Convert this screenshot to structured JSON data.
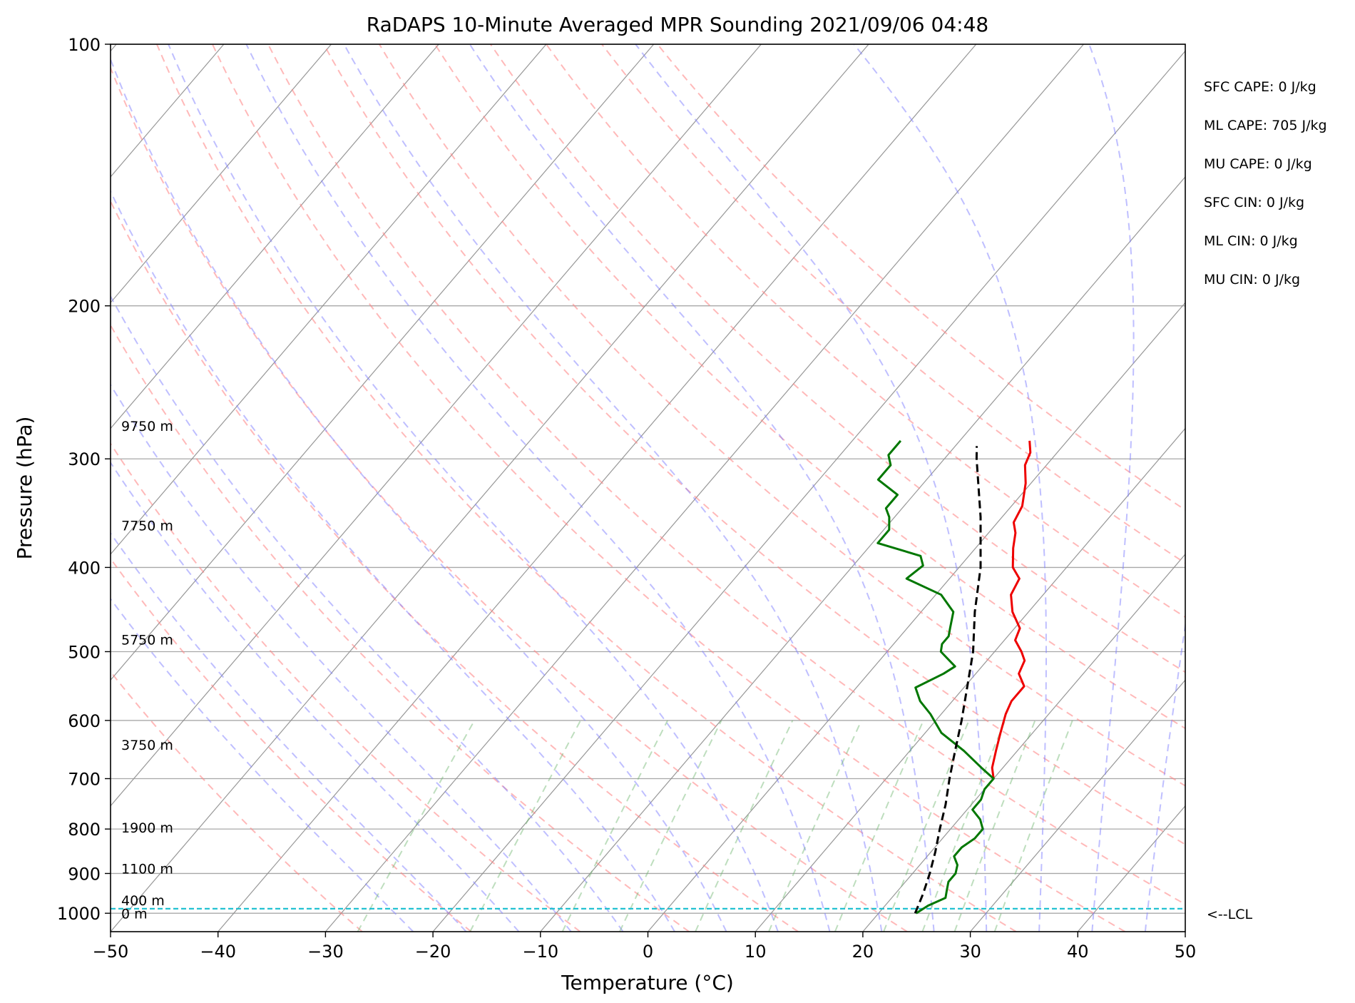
{
  "chart_data": {
    "type": "line",
    "title": "RaDAPS 10-Minute Averaged MPR Sounding 2021/09/06 04:48",
    "xlabel": "Temperature (°C)",
    "ylabel": "Pressure (hPa)",
    "xlim": [
      -50,
      50
    ],
    "ylim": [
      1050,
      100
    ],
    "y_scale": "log",
    "x_ticks": [
      -50,
      -40,
      -30,
      -20,
      -10,
      0,
      10,
      20,
      30,
      40,
      50
    ],
    "x_tick_labels": [
      "−50",
      "−40",
      "−30",
      "−20",
      "−10",
      "0",
      "10",
      "20",
      "30",
      "40",
      "50"
    ],
    "y_ticks": [
      100,
      200,
      300,
      400,
      500,
      600,
      700,
      800,
      900,
      1000
    ],
    "y_tick_labels": [
      "100",
      "200",
      "300",
      "400",
      "500",
      "600",
      "700",
      "800",
      "900",
      "1000"
    ],
    "grid": true,
    "skew_factor": 30,
    "colors": {
      "temperature": "#ee0000",
      "dewpoint": "#007700",
      "parcel": "#000000",
      "lcl": "#17becf",
      "dry_adiabat": "#ff8080",
      "moist_adiabat": "#8080ff",
      "mixing_ratio": "#6fb56f",
      "isotherm": "#8c8c8c",
      "grid": "#a8a8a8"
    },
    "series": [
      {
        "key": "temperature",
        "p": [
          286,
          295,
          305,
          320,
          340,
          355,
          365,
          380,
          400,
          412,
          430,
          450,
          470,
          485,
          500,
          512,
          530,
          548,
          570,
          590,
          620,
          650,
          680,
          700
        ],
        "t": [
          -3.5,
          -2.5,
          -2.0,
          -0.5,
          1.0,
          1.5,
          2.5,
          3.5,
          5.0,
          6.5,
          7.0,
          8.5,
          10.5,
          11.0,
          12.5,
          13.5,
          14.0,
          15.5,
          15.5,
          16.0,
          17.0,
          18.0,
          19.0,
          20.0
        ]
      },
      {
        "key": "dewpoint",
        "p": [
          286,
          297,
          305,
          317,
          330,
          342,
          350,
          362,
          375,
          388,
          398,
          412,
          430,
          450,
          470,
          480,
          490,
          500,
          520,
          530,
          550,
          570,
          590,
          620,
          650,
          680,
          700,
          720,
          740,
          760,
          780,
          800,
          820,
          840,
          860,
          880,
          900,
          920,
          940,
          960,
          980,
          1000
        ],
        "t": [
          -15.5,
          -15.5,
          -14.5,
          -14.5,
          -11.5,
          -11.5,
          -10.5,
          -9.5,
          -9.5,
          -4.5,
          -3.5,
          -4.0,
          0.5,
          3.0,
          4.0,
          4.5,
          4.5,
          5.0,
          7.5,
          7.0,
          5.5,
          7.0,
          9.0,
          11.5,
          15.0,
          18.0,
          20.0,
          20.0,
          20.5,
          20.5,
          22.0,
          23.0,
          23.0,
          22.5,
          22.5,
          23.5,
          24.0,
          24.0,
          24.5,
          25.0,
          24.0,
          23.5
        ]
      },
      {
        "key": "parcel",
        "p": [
          1000,
          950,
          900,
          850,
          800,
          750,
          700,
          650,
          600,
          550,
          500,
          450,
          400,
          350,
          300,
          290
        ],
        "t": [
          23.4,
          22.6,
          21.6,
          20.4,
          19.0,
          17.6,
          15.9,
          14.2,
          12.4,
          10.3,
          8.0,
          5.0,
          2.0,
          -2.0,
          -7.0,
          -8.0
        ]
      }
    ],
    "height_labels": [
      {
        "text": "9750 m",
        "p": 275
      },
      {
        "text": "7750 m",
        "p": 358
      },
      {
        "text": "5750 m",
        "p": 484
      },
      {
        "text": "3750 m",
        "p": 640
      },
      {
        "text": "1900 m",
        "p": 797
      },
      {
        "text": "1100 m",
        "p": 888
      },
      {
        "text": "400 m",
        "p": 966
      },
      {
        "text": "0 m",
        "p": 1001
      }
    ],
    "lcl": {
      "p": 988,
      "label": "<--LCL"
    },
    "indices": [
      "SFC CAPE: 0 J/kg",
      "ML CAPE: 705 J/kg",
      "MU CAPE: 0 J/kg",
      "SFC CIN: 0 J/kg",
      "ML CIN: 0 J/kg",
      "MU CIN: 0 J/kg"
    ],
    "dry_adiabats_theta_c": [
      -30,
      -20,
      -10,
      0,
      10,
      20,
      30,
      40,
      50,
      60,
      70,
      80,
      90,
      100,
      110,
      120
    ],
    "moist_adiabats_t0": [
      -25,
      -20,
      -15,
      -10,
      -5,
      0,
      5,
      10,
      15,
      20,
      25,
      30,
      35,
      40,
      45
    ],
    "mixing_ratios": [
      0.4,
      1,
      2,
      3,
      5,
      8,
      12,
      16,
      20,
      24,
      30
    ]
  }
}
